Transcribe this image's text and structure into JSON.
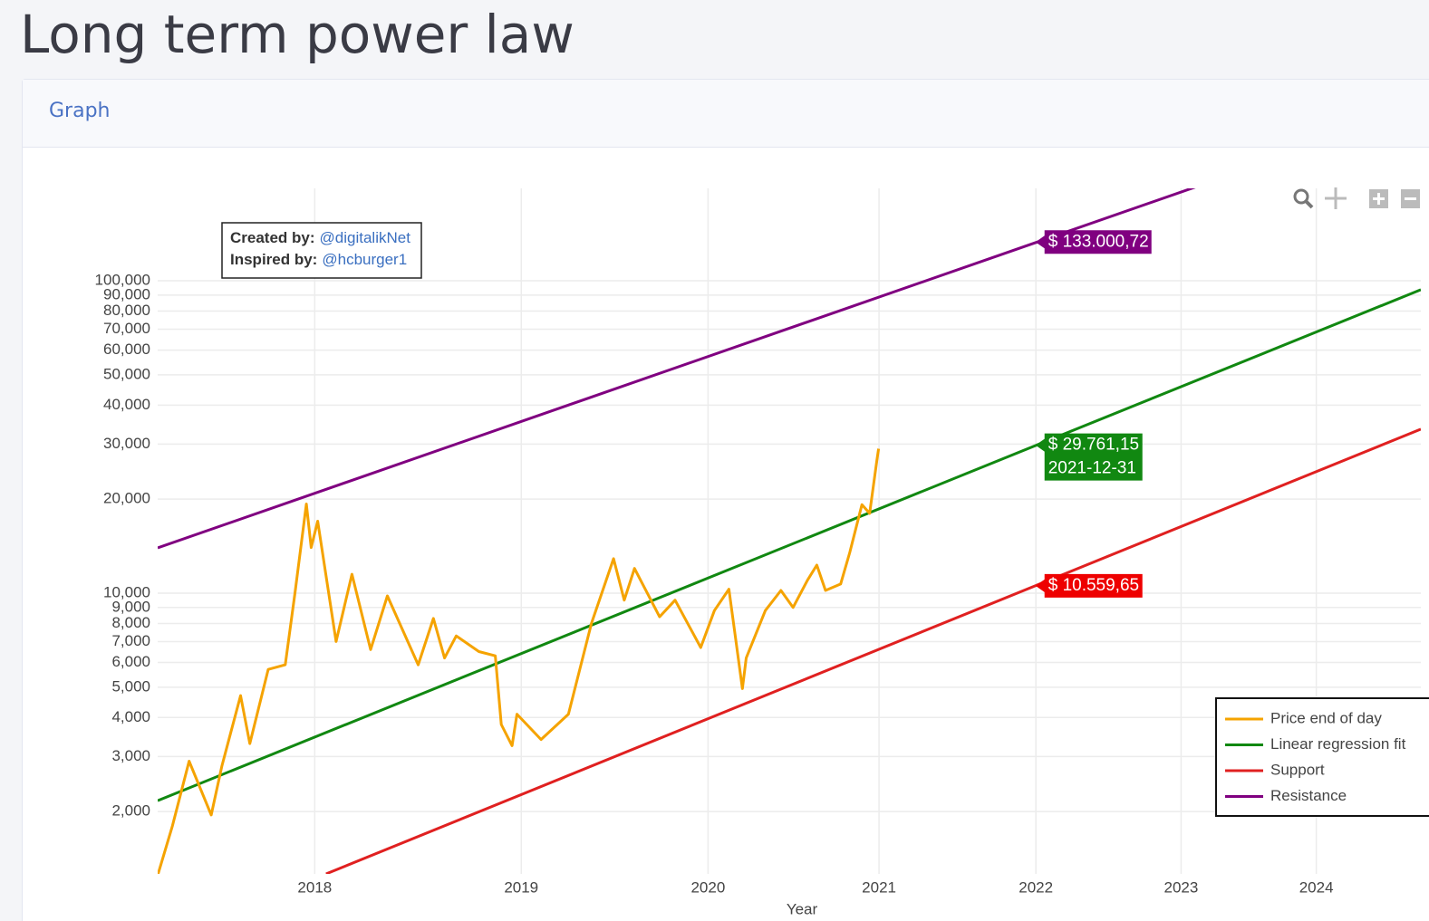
{
  "page_title": "Long term power law",
  "card_title": "Graph",
  "chart_data": {
    "type": "line",
    "x_label": "Year",
    "xlog": true,
    "ylog": true,
    "grid": true,
    "xlim": [
      3032,
      5776
    ],
    "ylim": [
      1263,
      197600
    ],
    "xticks": [
      {
        "value": 3285,
        "label": "2018"
      },
      {
        "value": 3650,
        "label": "2019"
      },
      {
        "value": 4015,
        "label": "2020"
      },
      {
        "value": 4381,
        "label": "2021"
      },
      {
        "value": 4746,
        "label": "2022"
      },
      {
        "value": 5111,
        "label": "2023"
      },
      {
        "value": 5476,
        "label": "2024"
      }
    ],
    "yticks": [
      {
        "value": 2000,
        "label": "2,000"
      },
      {
        "value": 3000,
        "label": "3,000"
      },
      {
        "value": 4000,
        "label": "4,000"
      },
      {
        "value": 5000,
        "label": "5,000"
      },
      {
        "value": 6000,
        "label": "6,000"
      },
      {
        "value": 7000,
        "label": "7,000"
      },
      {
        "value": 8000,
        "label": "8,000"
      },
      {
        "value": 9000,
        "label": "9,000"
      },
      {
        "value": 10000,
        "label": "10,000"
      },
      {
        "value": 20000,
        "label": "20,000"
      },
      {
        "value": 30000,
        "label": "30,000"
      },
      {
        "value": 40000,
        "label": "40,000"
      },
      {
        "value": 50000,
        "label": "50,000"
      },
      {
        "value": 60000,
        "label": "60,000"
      },
      {
        "value": 70000,
        "label": "70,000"
      },
      {
        "value": 80000,
        "label": "80,000"
      },
      {
        "value": 90000,
        "label": "90,000"
      },
      {
        "value": 100000,
        "label": "100,000"
      }
    ],
    "series": [
      {
        "name": "Price end of day",
        "color": "#f5a300",
        "x": [
          3032,
          3055,
          3081,
          3116,
          3133,
          3163,
          3178,
          3208,
          3236,
          3252,
          3271,
          3279,
          3290,
          3321,
          3348,
          3380,
          3409,
          3463,
          3490,
          3510,
          3531,
          3572,
          3602,
          3613,
          3633,
          3642,
          3687,
          3739,
          3783,
          3826,
          3847,
          3867,
          3917,
          3948,
          4000,
          4028,
          4058,
          4086,
          4094,
          4134,
          4167,
          4193,
          4224,
          4244,
          4263,
          4296,
          4316,
          4343,
          4360,
          4376,
          4380
        ],
        "values": [
          1250,
          1800,
          2900,
          1950,
          2800,
          4700,
          3300,
          5700,
          5900,
          10000,
          19300,
          14000,
          17000,
          7000,
          11500,
          6600,
          9800,
          5900,
          8300,
          6200,
          7300,
          6500,
          6300,
          3800,
          3250,
          4100,
          3400,
          4100,
          8000,
          12900,
          9500,
          12000,
          8400,
          9500,
          6700,
          8800,
          10300,
          4950,
          6200,
          8800,
          10200,
          9000,
          11000,
          12300,
          10200,
          10700,
          13500,
          19200,
          18000,
          26500,
          29000
        ]
      },
      {
        "name": "Linear regression fit",
        "color": "#118811",
        "x": [
          3032,
          5776
        ],
        "values": [
          2167,
          93600
        ]
      },
      {
        "name": "Support",
        "color": "#e02020",
        "x": [
          3304,
          5776
        ],
        "values": [
          1263,
          33500
        ]
      },
      {
        "name": "Resistance",
        "color": "#800080",
        "x": [
          3032,
          5776
        ],
        "values": [
          13960,
          355600
        ]
      }
    ],
    "annotations": [
      {
        "x": 4745,
        "y": 133000.72,
        "color": "#800080",
        "text": [
          "$ 133.000,72"
        ]
      },
      {
        "x": 4745,
        "y": 29761.15,
        "color": "#118811",
        "text": [
          "$ 29.761,15",
          "2021-12-31"
        ]
      },
      {
        "x": 4745,
        "y": 10559.65,
        "color": "#ee0000",
        "text": [
          "$ 10.559,65"
        ]
      }
    ],
    "credits": {
      "created_label": "Created by:",
      "created_by": "@digitalikNet",
      "inspired_label": "Inspired by:",
      "inspired_by": "@hcburger1"
    },
    "legend": "bottom-right"
  }
}
